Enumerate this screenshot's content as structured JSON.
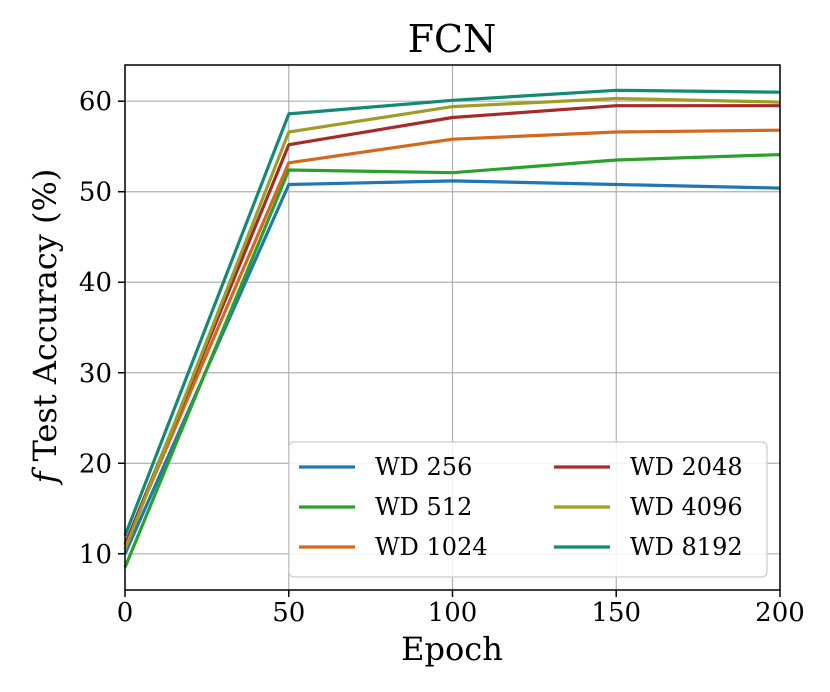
{
  "chart_data": {
    "type": "line",
    "title": "FCN",
    "xlabel": "Epoch",
    "ylabel_italic": "f",
    "ylabel_rest": " Test Accuracy (%)",
    "x": [
      0,
      50,
      100,
      150,
      200
    ],
    "xlim": [
      0,
      200
    ],
    "ylim": [
      6,
      64
    ],
    "xticks": [
      0,
      50,
      100,
      150,
      200
    ],
    "yticks": [
      10,
      20,
      30,
      40,
      50,
      60
    ],
    "grid": true,
    "legend_placement": "lower-right",
    "legend_columns": 2,
    "series": [
      {
        "name": "WD 256",
        "color": "#1f77b4",
        "values": [
          10.0,
          50.8,
          51.2,
          50.8,
          50.4
        ]
      },
      {
        "name": "WD 512",
        "color": "#2ca02c",
        "values": [
          8.5,
          52.4,
          52.1,
          53.5,
          54.1
        ]
      },
      {
        "name": "WD 1024",
        "color": "#d2691e",
        "values": [
          11.0,
          53.2,
          55.8,
          56.6,
          56.8
        ]
      },
      {
        "name": "WD 2048",
        "color": "#a52a2a",
        "values": [
          11.0,
          55.2,
          58.2,
          59.5,
          59.5
        ]
      },
      {
        "name": "WD 4096",
        "color": "#9e9e26",
        "values": [
          10.5,
          56.6,
          59.4,
          60.3,
          59.9
        ]
      },
      {
        "name": "WD 8192",
        "color": "#138a75",
        "values": [
          12.0,
          58.6,
          60.1,
          61.2,
          61.0
        ]
      }
    ]
  }
}
